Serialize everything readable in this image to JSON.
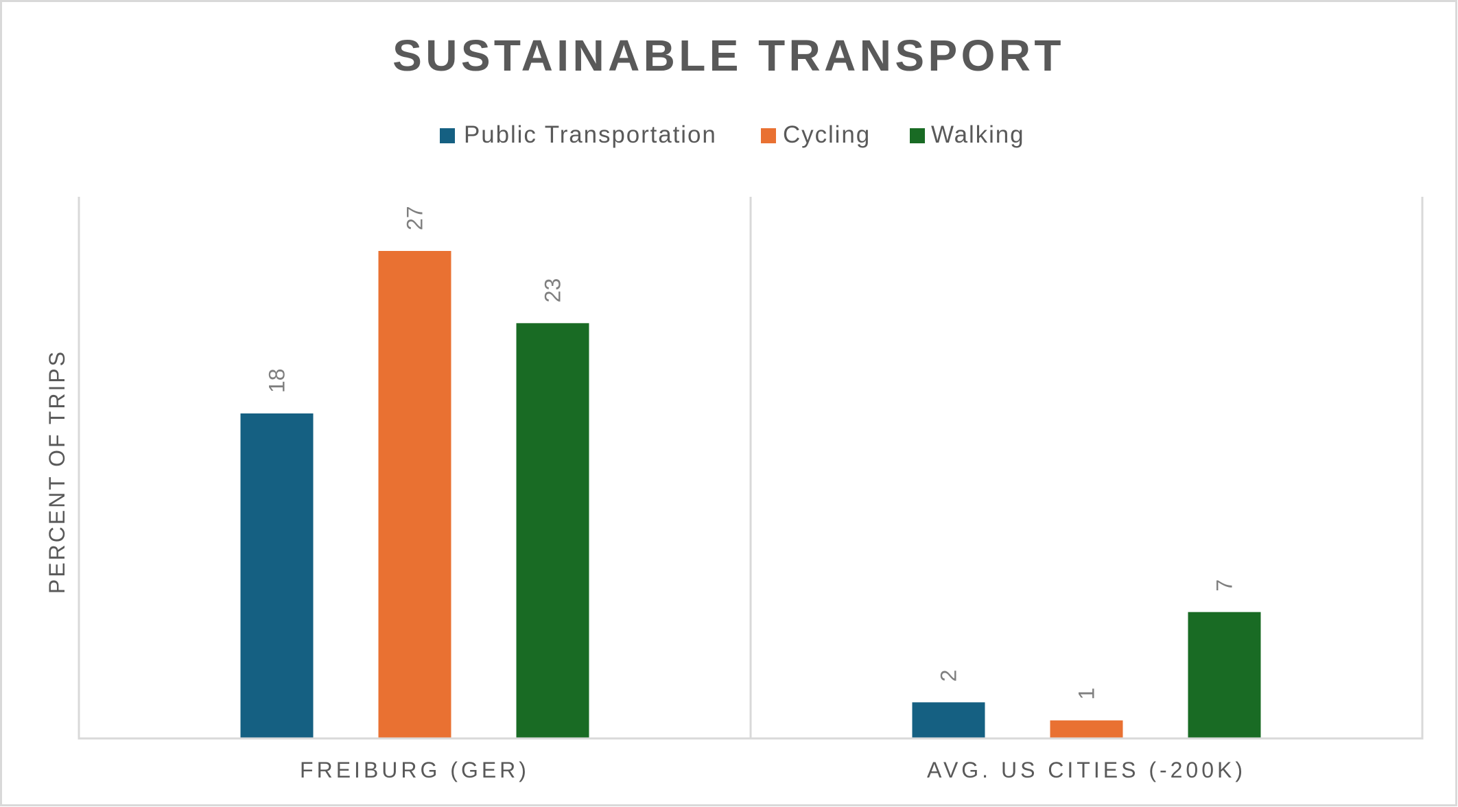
{
  "chart_data": {
    "type": "bar",
    "title": "SUSTAINABLE TRANSPORT",
    "xlabel": "",
    "ylabel": "PERCENT OF TRIPS",
    "ylim": [
      0,
      30
    ],
    "grid": false,
    "legend_position": "top",
    "categories": [
      "FREIBURG (GER)",
      "AVG. US CITIES (-200K)"
    ],
    "series": [
      {
        "name": "Public Transportation",
        "color": "#156082",
        "values": [
          18,
          2
        ],
        "labels": [
          "18",
          "2"
        ]
      },
      {
        "name": "Cycling",
        "color": "#E97132",
        "values": [
          27,
          1
        ],
        "labels": [
          "27",
          "1"
        ]
      },
      {
        "name": "Walking",
        "color": "#196B24",
        "values": [
          23,
          7
        ],
        "labels": [
          "23",
          "7"
        ]
      }
    ]
  },
  "colors": {
    "text": "#595959",
    "data_label": "#7f7f7f",
    "axis_line": "#d9d9d9"
  }
}
